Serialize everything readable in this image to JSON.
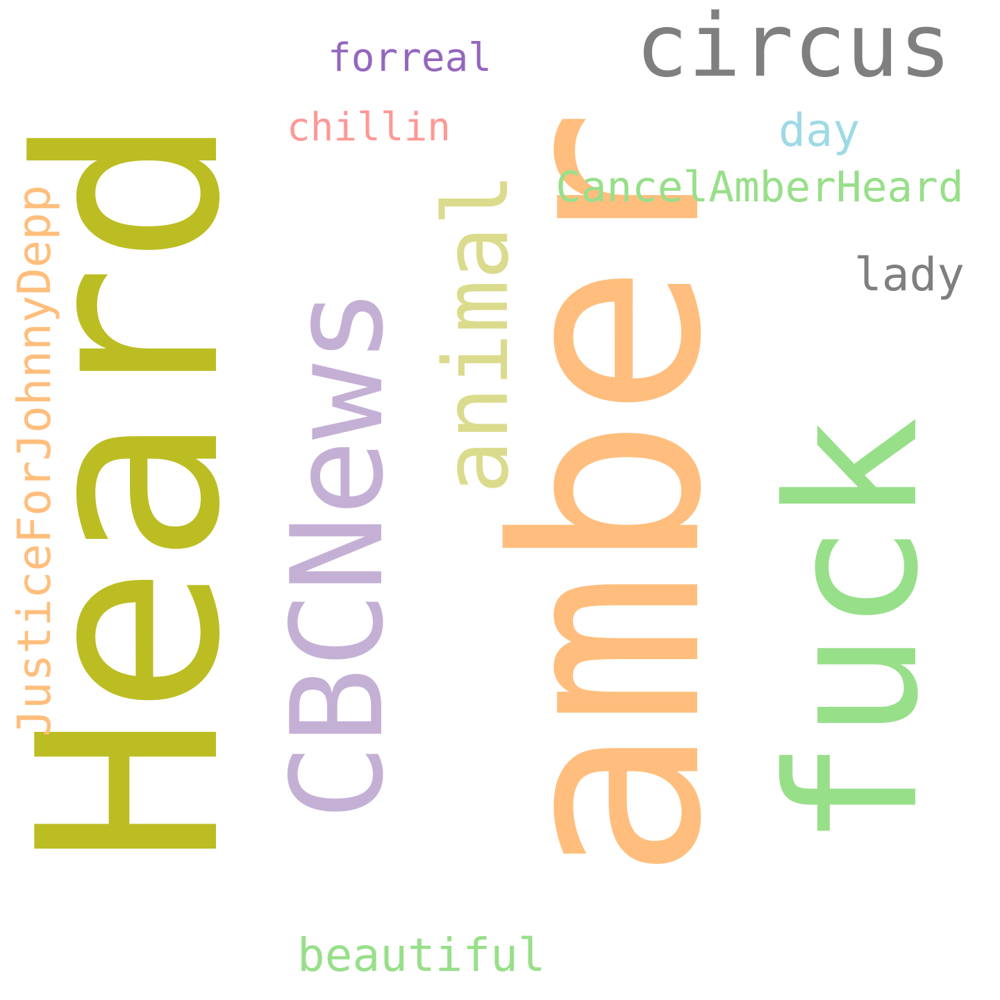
{
  "words": [
    {
      "id": "heard",
      "text": "Heard",
      "color": "#bcbd22",
      "orientation": "vertical"
    },
    {
      "id": "amber",
      "text": "amber",
      "color": "#ffbe7d",
      "orientation": "vertical"
    },
    {
      "id": "cbcnews",
      "text": "CBCNews",
      "color": "#c5b0d5",
      "orientation": "vertical"
    },
    {
      "id": "fuck",
      "text": "fuck",
      "color": "#98df8a",
      "orientation": "vertical"
    },
    {
      "id": "circus",
      "text": "circus",
      "color": "#7f7f7f",
      "orientation": "horizontal"
    },
    {
      "id": "animal",
      "text": "animal",
      "color": "#dbdb8d",
      "orientation": "vertical"
    },
    {
      "id": "justice",
      "text": "JusticeForJohnnyDepp",
      "color": "#ffbe7d",
      "orientation": "vertical"
    },
    {
      "id": "cancel",
      "text": "CancelAmberHeard",
      "color": "#98df8a",
      "orientation": "horizontal"
    },
    {
      "id": "beautiful",
      "text": "beautiful",
      "color": "#98df8a",
      "orientation": "horizontal"
    },
    {
      "id": "forreal",
      "text": "forreal",
      "color": "#9467bd",
      "orientation": "horizontal"
    },
    {
      "id": "chillin",
      "text": "chillin",
      "color": "#ff9896",
      "orientation": "horizontal"
    },
    {
      "id": "day",
      "text": "day",
      "color": "#9edae5",
      "orientation": "horizontal"
    },
    {
      "id": "lady",
      "text": "lady",
      "color": "#7f7f7f",
      "orientation": "horizontal"
    }
  ]
}
